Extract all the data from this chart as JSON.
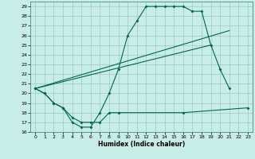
{
  "xlabel": "Humidex (Indice chaleur)",
  "bg_color": "#c8ece6",
  "grid_color": "#99ccbb",
  "line_color": "#006655",
  "xlim": [
    -0.5,
    23.5
  ],
  "ylim": [
    16,
    29.5
  ],
  "xticks": [
    0,
    1,
    2,
    3,
    4,
    5,
    6,
    7,
    8,
    9,
    10,
    11,
    12,
    13,
    14,
    15,
    16,
    17,
    18,
    19,
    20,
    21,
    22,
    23
  ],
  "yticks": [
    16,
    17,
    18,
    19,
    20,
    21,
    22,
    23,
    24,
    25,
    26,
    27,
    28,
    29
  ],
  "line1_x": [
    0,
    1,
    2,
    3,
    4,
    5,
    6,
    7,
    8,
    9,
    10,
    11,
    12,
    13,
    14,
    15,
    16,
    17,
    18,
    19,
    20,
    21
  ],
  "line1_y": [
    20.5,
    20.0,
    19.0,
    18.5,
    17.0,
    16.5,
    16.5,
    18.0,
    20.0,
    22.5,
    26.0,
    27.5,
    29.0,
    29.0,
    29.0,
    29.0,
    29.0,
    28.5,
    28.5,
    25.0,
    22.5,
    20.5
  ],
  "line2_x": [
    0,
    1,
    2,
    3,
    4,
    5,
    6,
    7,
    8,
    9,
    16,
    23
  ],
  "line2_y": [
    20.5,
    20.0,
    19.0,
    18.5,
    17.5,
    17.0,
    17.0,
    17.0,
    18.0,
    18.0,
    18.0,
    18.5
  ],
  "line3_x": [
    0,
    21
  ],
  "line3_y": [
    20.5,
    26.5
  ],
  "line4_x": [
    0,
    19
  ],
  "line4_y": [
    20.5,
    25.0
  ]
}
